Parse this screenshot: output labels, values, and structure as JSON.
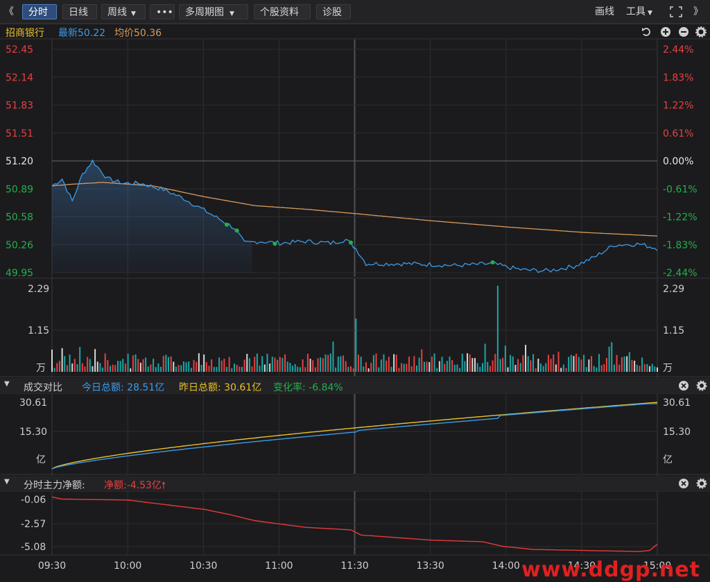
{
  "toolbar": {
    "back": "《",
    "tabs": [
      {
        "label": "分时",
        "active": true
      },
      {
        "label": "日线",
        "active": false
      },
      {
        "label": "周线",
        "active": false
      },
      {
        "label": "•••",
        "active": false
      },
      {
        "label": "多周期图",
        "active": false
      },
      {
        "label": "个股资料",
        "active": false
      },
      {
        "label": "诊股",
        "active": false
      }
    ],
    "draw": "画线",
    "tools": "工具",
    "forward": "》"
  },
  "info": {
    "stock_name": "招商银行",
    "latest": "最新50.22",
    "avg": "均价50.36"
  },
  "price_chart": {
    "left_ticks": [
      "52.45",
      "52.14",
      "51.83",
      "51.51",
      "51.20",
      "50.89",
      "50.58",
      "50.26",
      "49.95"
    ],
    "right_ticks": [
      "2.44%",
      "1.83%",
      "1.22%",
      "0.61%",
      "0.00%",
      "-0.61%",
      "-1.22%",
      "-1.83%",
      "-2.44%"
    ],
    "ylim": [
      49.95,
      52.45
    ],
    "prev_close": 51.2
  },
  "volume_chart": {
    "left_ticks": [
      "2.29",
      "1.15",
      "万"
    ],
    "right_ticks": [
      "2.29",
      "1.15",
      "万"
    ]
  },
  "turnover_panel": {
    "title": "成交对比",
    "today": "今日总额: 28.51亿",
    "yesterday": "昨日总额: 30.61亿",
    "change": "变化率: -6.84%",
    "left_ticks": [
      "30.61",
      "15.30",
      "亿"
    ],
    "right_ticks": [
      "30.61",
      "15.30",
      "亿"
    ]
  },
  "netflow_panel": {
    "title": "分时主力净额:",
    "net": "净额:-4.53亿",
    "left_ticks": [
      "-0.06",
      "-2.57",
      "-5.08"
    ]
  },
  "time_axis": [
    "09:30",
    "10:00",
    "10:30",
    "11:00",
    "11:30",
    "13:30",
    "14:00",
    "14:30",
    "15:00"
  ],
  "watermark": "www.ddgp.net",
  "colors": {
    "up": "#e84040",
    "down": "#22b14c",
    "price_line": "#3d9be9",
    "avg_line": "#d89a5a",
    "yesterday_line": "#e8c22a",
    "netflow_line": "#e83a3a",
    "volume_bar": "#1aa7a7"
  },
  "chart_data": {
    "type": "line",
    "x": [
      "09:30",
      "10:00",
      "10:30",
      "11:00",
      "11:30",
      "13:30",
      "14:00",
      "14:30",
      "15:00"
    ],
    "series": [],
    "ylim": [
      49.95,
      52.45
    ]
  }
}
